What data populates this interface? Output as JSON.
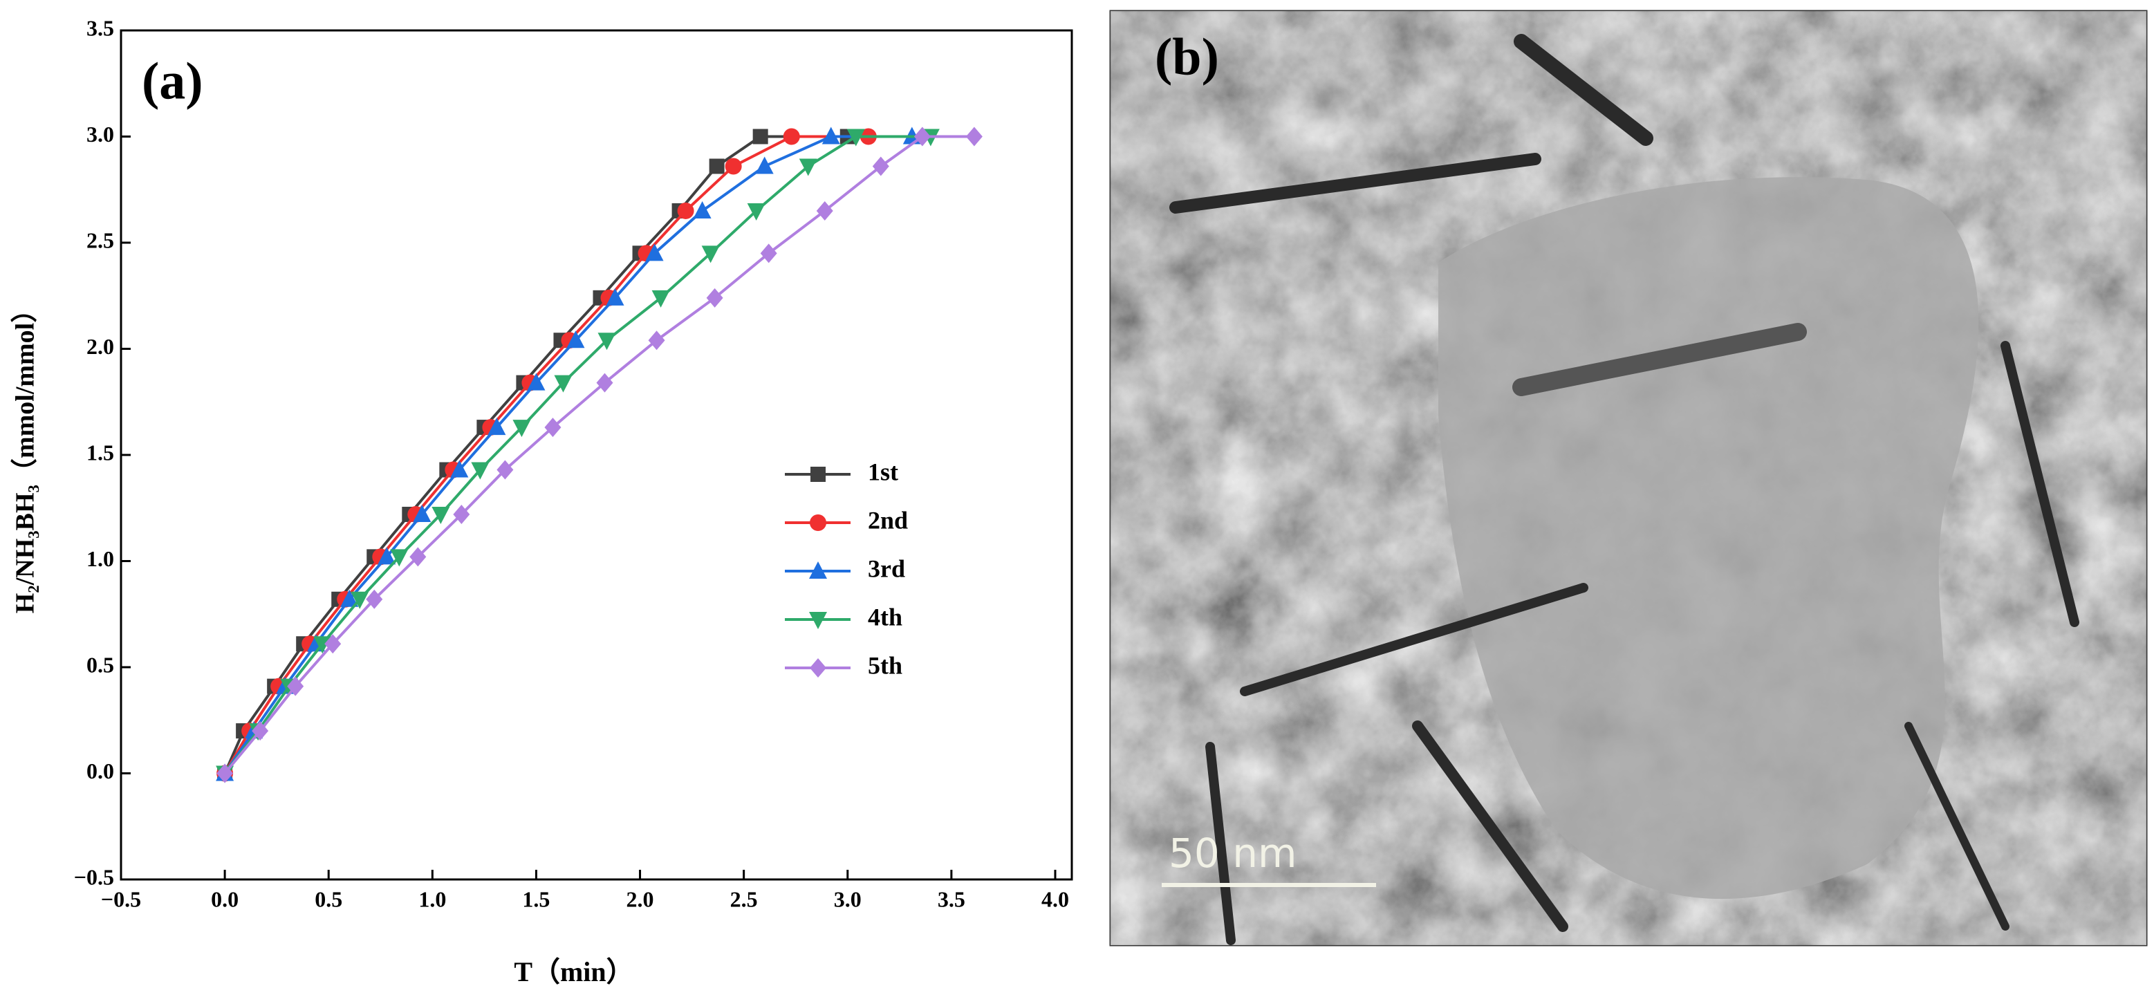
{
  "chart_data": {
    "type": "line",
    "panel_label": "(a)",
    "xlabel": "T（min）",
    "ylabel": "H₂/NH₃BH₃（mmol/mmol）",
    "xlim": [
      -0.5,
      4.08
    ],
    "ylim": [
      -0.5,
      3.5
    ],
    "xticks": [
      {
        "value": -0.5,
        "label": "−0.5"
      },
      {
        "value": 0,
        "label": "0.0"
      },
      0.5,
      {
        "value": 1,
        "label": "1.0"
      },
      1.5,
      {
        "value": 2,
        "label": "2.0"
      },
      2.5,
      {
        "value": 3,
        "label": "3.0"
      },
      3.5,
      {
        "value": 4,
        "label": "4.0"
      }
    ],
    "yticks": [
      {
        "value": -0.5,
        "label": "−0.5"
      },
      {
        "value": 0,
        "label": "0.0"
      },
      0.5,
      {
        "value": 1,
        "label": "1.0"
      },
      1.5,
      {
        "value": 2,
        "label": "2.0"
      },
      2.5,
      {
        "value": 3,
        "label": "3.0"
      },
      3.5
    ],
    "series": [
      {
        "name": "1st",
        "color": "#404040",
        "marker": "square",
        "x": [
          0,
          0.09,
          0.24,
          0.38,
          0.55,
          0.72,
          0.89,
          1.07,
          1.25,
          1.44,
          1.62,
          1.81,
          2.0,
          2.19,
          2.37,
          2.58,
          3.0
        ],
        "values": [
          0,
          0.2,
          0.41,
          0.61,
          0.82,
          1.02,
          1.22,
          1.43,
          1.63,
          1.84,
          2.04,
          2.24,
          2.45,
          2.65,
          2.86,
          3.0,
          3.0
        ]
      },
      {
        "name": "2nd",
        "color": "#f03030",
        "marker": "circle",
        "x": [
          0,
          0.12,
          0.26,
          0.41,
          0.58,
          0.75,
          0.92,
          1.1,
          1.28,
          1.47,
          1.66,
          1.85,
          2.03,
          2.22,
          2.45,
          2.73,
          3.1
        ],
        "values": [
          0,
          0.2,
          0.41,
          0.61,
          0.82,
          1.02,
          1.22,
          1.43,
          1.63,
          1.84,
          2.04,
          2.24,
          2.45,
          2.65,
          2.86,
          3.0,
          3.0
        ]
      },
      {
        "name": "3rd",
        "color": "#1f6fdf",
        "marker": "triangle-up",
        "x": [
          0,
          0.14,
          0.29,
          0.44,
          0.6,
          0.78,
          0.95,
          1.13,
          1.31,
          1.5,
          1.69,
          1.88,
          2.07,
          2.3,
          2.6,
          2.92,
          3.31
        ],
        "values": [
          0,
          0.2,
          0.41,
          0.61,
          0.82,
          1.02,
          1.22,
          1.43,
          1.63,
          1.84,
          2.04,
          2.24,
          2.45,
          2.65,
          2.86,
          3.0,
          3.0
        ]
      },
      {
        "name": "4th",
        "color": "#2eaa6a",
        "marker": "triangle-down",
        "x": [
          0,
          0.16,
          0.31,
          0.47,
          0.65,
          0.84,
          1.04,
          1.23,
          1.43,
          1.63,
          1.84,
          2.1,
          2.34,
          2.56,
          2.81,
          3.04,
          3.4
        ],
        "values": [
          0,
          0.2,
          0.41,
          0.61,
          0.82,
          1.02,
          1.22,
          1.43,
          1.63,
          1.84,
          2.04,
          2.24,
          2.45,
          2.65,
          2.86,
          3.0,
          3.0
        ]
      },
      {
        "name": "5th",
        "color": "#b07fe0",
        "marker": "diamond",
        "x": [
          0,
          0.17,
          0.34,
          0.52,
          0.72,
          0.93,
          1.14,
          1.35,
          1.58,
          1.83,
          2.08,
          2.36,
          2.62,
          2.89,
          3.16,
          3.36,
          3.61
        ],
        "values": [
          0,
          0.2,
          0.41,
          0.61,
          0.82,
          1.02,
          1.22,
          1.43,
          1.63,
          1.84,
          2.04,
          2.24,
          2.45,
          2.65,
          2.86,
          3.0,
          3.0
        ]
      }
    ]
  },
  "panel_b": {
    "label": "(b)",
    "scale_bar": "50 nm"
  }
}
